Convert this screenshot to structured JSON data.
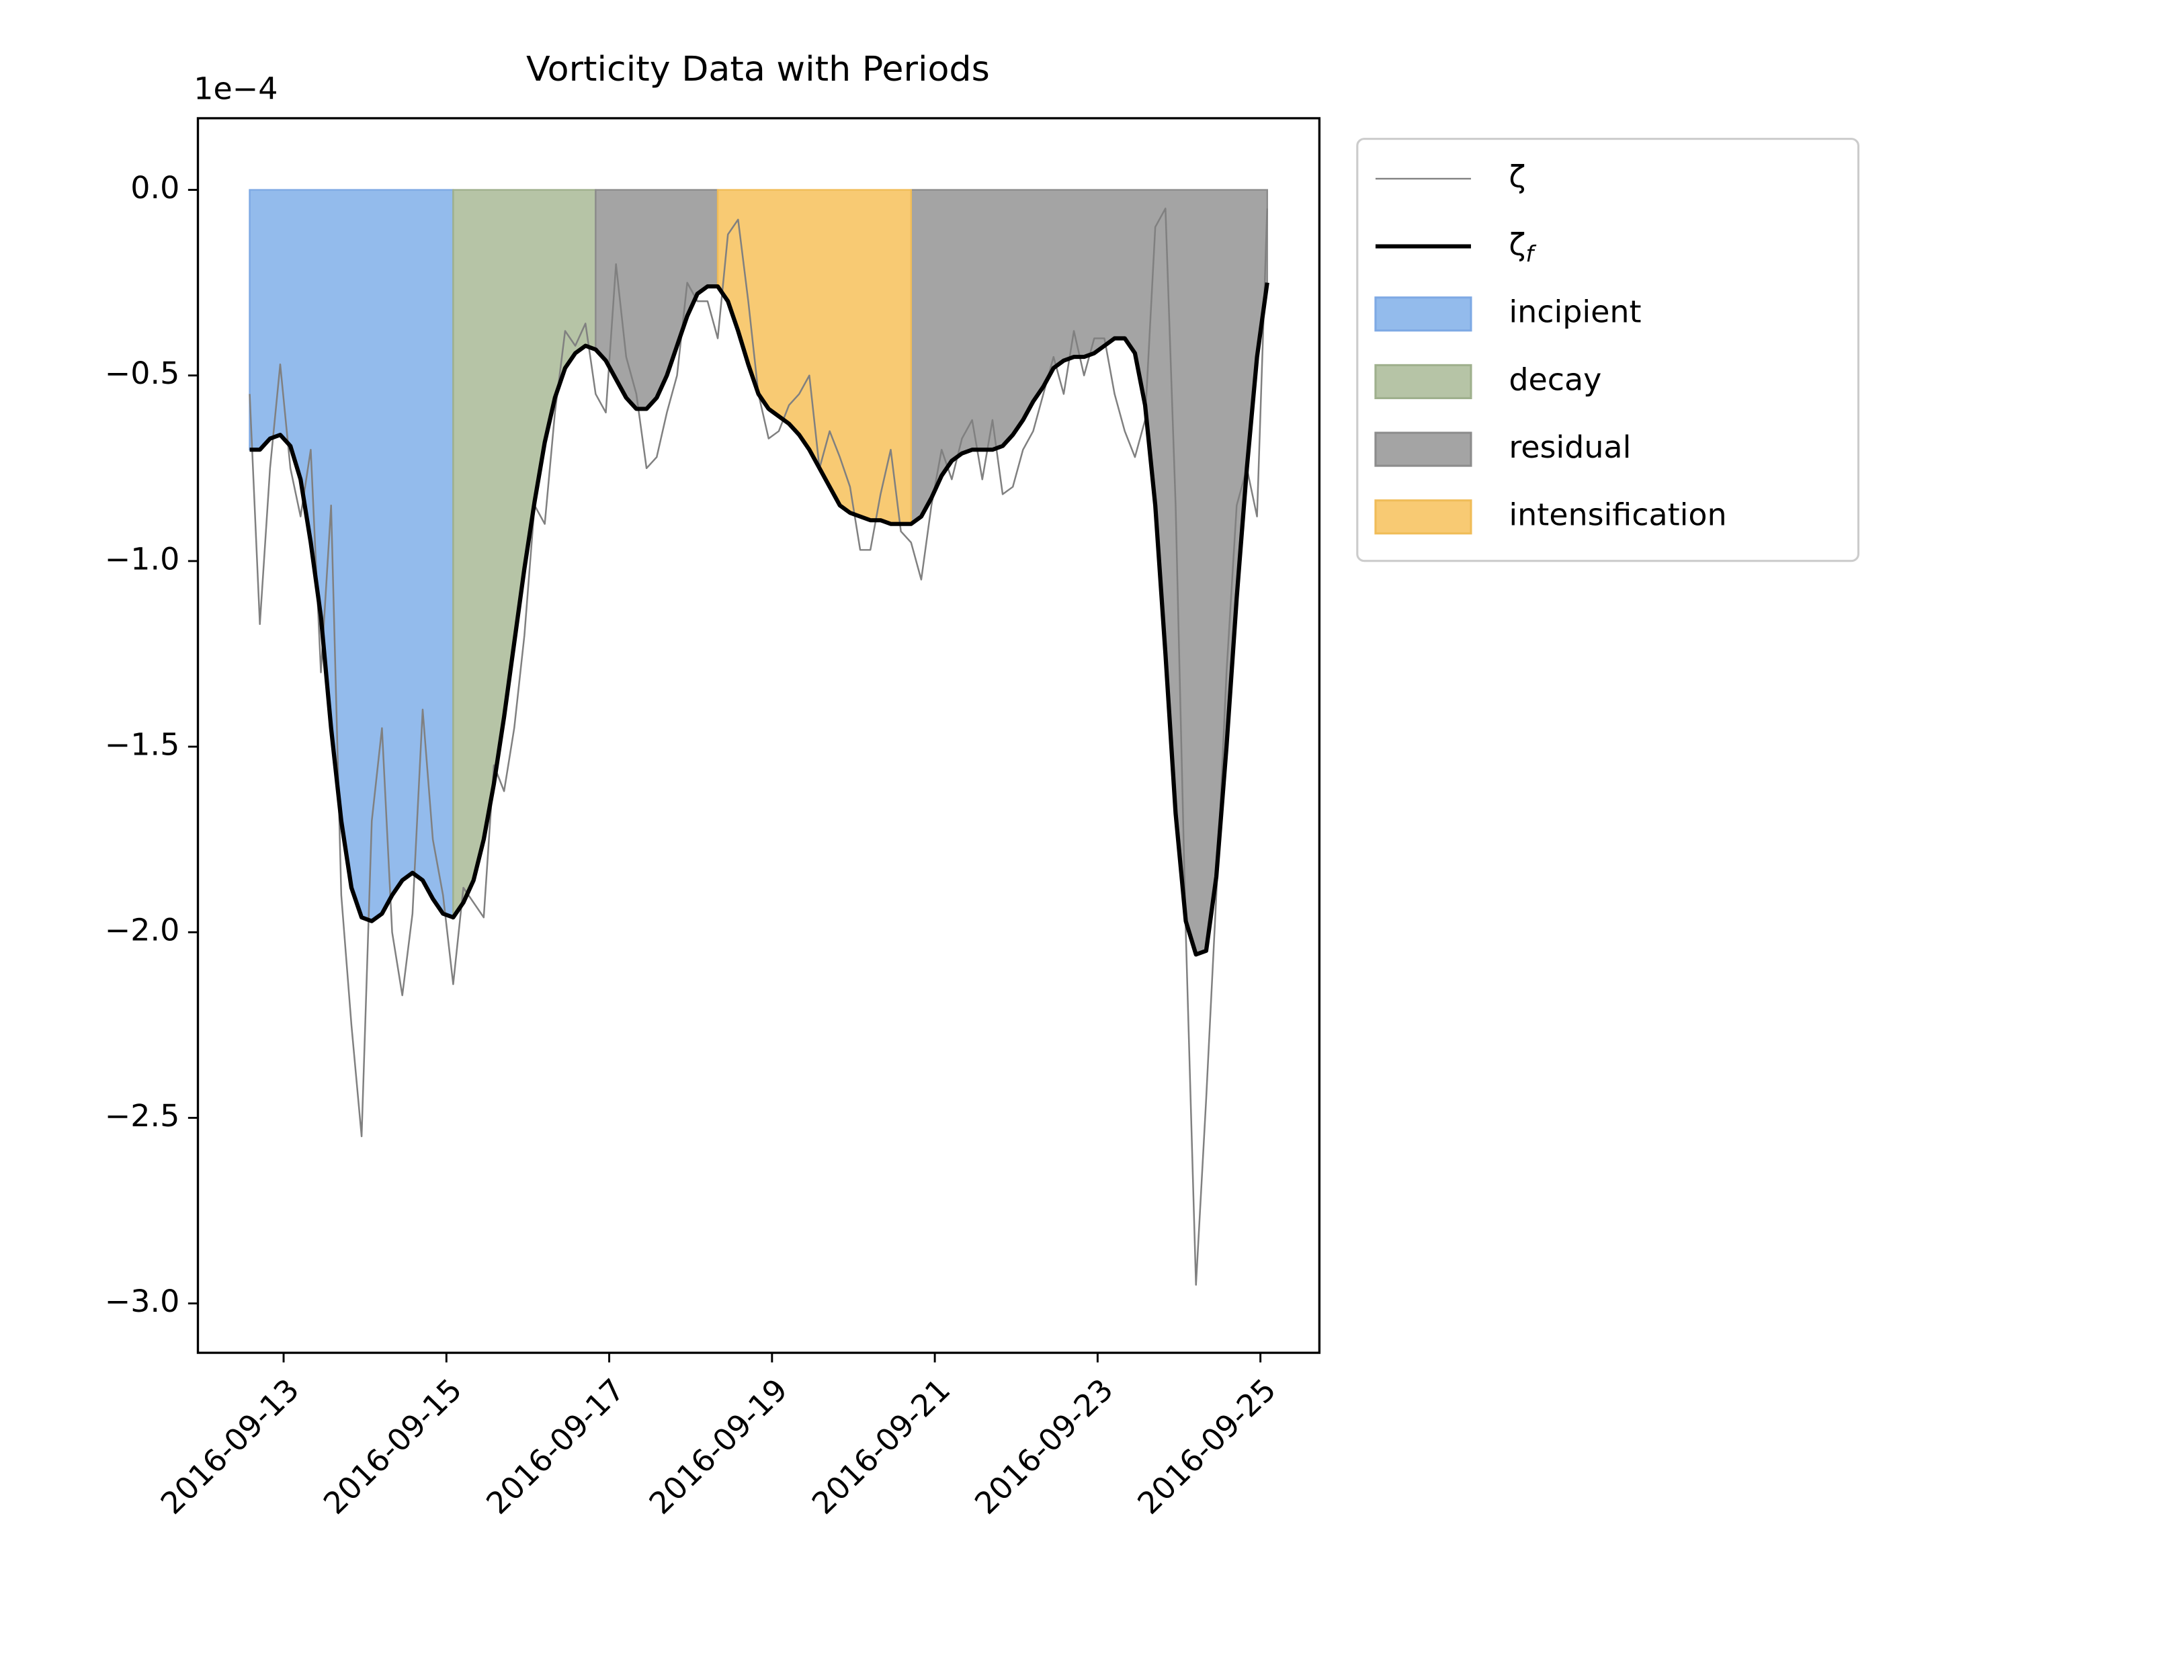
{
  "chart_data": {
    "type": "line",
    "title": "Vorticity Data with Periods",
    "y_offset_label": "1e−4",
    "x": [
      "2016-09-12T14:00",
      "2016-09-12T17:00",
      "2016-09-12T20:00",
      "2016-09-12T23:00",
      "2016-09-13T02:00",
      "2016-09-13T05:00",
      "2016-09-13T08:00",
      "2016-09-13T11:00",
      "2016-09-13T14:00",
      "2016-09-13T17:00",
      "2016-09-13T20:00",
      "2016-09-13T23:00",
      "2016-09-14T02:00",
      "2016-09-14T05:00",
      "2016-09-14T08:00",
      "2016-09-14T11:00",
      "2016-09-14T14:00",
      "2016-09-14T17:00",
      "2016-09-14T20:00",
      "2016-09-14T23:00",
      "2016-09-15T02:00",
      "2016-09-15T05:00",
      "2016-09-15T08:00",
      "2016-09-15T11:00",
      "2016-09-15T14:00",
      "2016-09-15T17:00",
      "2016-09-15T20:00",
      "2016-09-15T23:00",
      "2016-09-16T02:00",
      "2016-09-16T05:00",
      "2016-09-16T08:00",
      "2016-09-16T11:00",
      "2016-09-16T14:00",
      "2016-09-16T17:00",
      "2016-09-16T20:00",
      "2016-09-16T23:00",
      "2016-09-17T02:00",
      "2016-09-17T05:00",
      "2016-09-17T08:00",
      "2016-09-17T11:00",
      "2016-09-17T14:00",
      "2016-09-17T17:00",
      "2016-09-17T20:00",
      "2016-09-17T23:00",
      "2016-09-18T02:00",
      "2016-09-18T05:00",
      "2016-09-18T08:00",
      "2016-09-18T11:00",
      "2016-09-18T14:00",
      "2016-09-18T17:00",
      "2016-09-18T20:00",
      "2016-09-18T23:00",
      "2016-09-19T02:00",
      "2016-09-19T05:00",
      "2016-09-19T08:00",
      "2016-09-19T11:00",
      "2016-09-19T14:00",
      "2016-09-19T17:00",
      "2016-09-19T20:00",
      "2016-09-19T23:00",
      "2016-09-20T02:00",
      "2016-09-20T05:00",
      "2016-09-20T08:00",
      "2016-09-20T11:00",
      "2016-09-20T14:00",
      "2016-09-20T17:00",
      "2016-09-20T20:00",
      "2016-09-20T23:00",
      "2016-09-21T02:00",
      "2016-09-21T05:00",
      "2016-09-21T08:00",
      "2016-09-21T11:00",
      "2016-09-21T14:00",
      "2016-09-21T17:00",
      "2016-09-21T20:00",
      "2016-09-21T23:00",
      "2016-09-22T02:00",
      "2016-09-22T05:00",
      "2016-09-22T08:00",
      "2016-09-22T11:00",
      "2016-09-22T14:00",
      "2016-09-22T17:00",
      "2016-09-22T20:00",
      "2016-09-22T23:00",
      "2016-09-23T02:00",
      "2016-09-23T05:00",
      "2016-09-23T08:00",
      "2016-09-23T11:00",
      "2016-09-23T14:00",
      "2016-09-23T17:00",
      "2016-09-23T20:00",
      "2016-09-23T23:00",
      "2016-09-24T02:00",
      "2016-09-24T05:00",
      "2016-09-24T08:00",
      "2016-09-24T11:00",
      "2016-09-24T14:00",
      "2016-09-24T17:00",
      "2016-09-24T20:00",
      "2016-09-24T23:00",
      "2016-09-25T02:00"
    ],
    "series": [
      {
        "name": "ζ",
        "color": "#808080",
        "width": 1,
        "values": [
          -0.55,
          -1.17,
          -0.75,
          -0.47,
          -0.75,
          -0.88,
          -0.7,
          -1.3,
          -0.85,
          -1.9,
          -2.25,
          -2.55,
          -1.7,
          -1.45,
          -2.0,
          -2.17,
          -1.95,
          -1.4,
          -1.75,
          -1.9,
          -2.14,
          -1.88,
          -1.92,
          -1.96,
          -1.55,
          -1.62,
          -1.45,
          -1.2,
          -0.85,
          -0.9,
          -0.6,
          -0.38,
          -0.42,
          -0.36,
          -0.55,
          -0.6,
          -0.2,
          -0.45,
          -0.55,
          -0.75,
          -0.72,
          -0.6,
          -0.5,
          -0.25,
          -0.3,
          -0.3,
          -0.4,
          -0.12,
          -0.08,
          -0.3,
          -0.55,
          -0.67,
          -0.65,
          -0.58,
          -0.55,
          -0.5,
          -0.75,
          -0.65,
          -0.72,
          -0.8,
          -0.97,
          -0.97,
          -0.82,
          -0.7,
          -0.92,
          -0.95,
          -1.05,
          -0.85,
          -0.7,
          -0.78,
          -0.67,
          -0.62,
          -0.78,
          -0.62,
          -0.82,
          -0.8,
          -0.7,
          -0.65,
          -0.55,
          -0.45,
          -0.55,
          -0.38,
          -0.5,
          -0.4,
          -0.4,
          -0.55,
          -0.65,
          -0.72,
          -0.62,
          -0.1,
          -0.05,
          -0.85,
          -2.0,
          -2.95,
          -2.45,
          -1.9,
          -1.3,
          -0.85,
          -0.75,
          -0.88,
          -0.05
        ]
      },
      {
        "name": "ζf",
        "color": "#000000",
        "width": 2.5,
        "filled": true,
        "values": [
          -0.7,
          -0.7,
          -0.67,
          -0.66,
          -0.69,
          -0.78,
          -0.95,
          -1.15,
          -1.45,
          -1.7,
          -1.88,
          -1.96,
          -1.97,
          -1.95,
          -1.9,
          -1.86,
          -1.84,
          -1.86,
          -1.91,
          -1.95,
          -1.96,
          -1.92,
          -1.86,
          -1.75,
          -1.6,
          -1.42,
          -1.22,
          -1.02,
          -0.84,
          -0.68,
          -0.56,
          -0.48,
          -0.44,
          -0.42,
          -0.43,
          -0.46,
          -0.51,
          -0.56,
          -0.59,
          -0.59,
          -0.56,
          -0.5,
          -0.42,
          -0.34,
          -0.28,
          -0.26,
          -0.26,
          -0.3,
          -0.38,
          -0.47,
          -0.55,
          -0.59,
          -0.61,
          -0.63,
          -0.66,
          -0.7,
          -0.75,
          -0.8,
          -0.85,
          -0.87,
          -0.88,
          -0.89,
          -0.89,
          -0.9,
          -0.9,
          -0.9,
          -0.88,
          -0.83,
          -0.77,
          -0.73,
          -0.71,
          -0.7,
          -0.7,
          -0.7,
          -0.69,
          -0.66,
          -0.62,
          -0.57,
          -0.53,
          -0.48,
          -0.46,
          -0.45,
          -0.45,
          -0.44,
          -0.42,
          -0.4,
          -0.4,
          -0.44,
          -0.58,
          -0.85,
          -1.25,
          -1.68,
          -1.97,
          -2.06,
          -2.05,
          -1.85,
          -1.5,
          -1.1,
          -0.75,
          -0.45,
          -0.25
        ]
      }
    ],
    "periods": [
      {
        "name": "incipient",
        "color": "#93bbec",
        "edge": "#7ea9e4",
        "spans": [
          [
            "2016-09-12T14:00",
            "2016-09-15T02:00"
          ]
        ]
      },
      {
        "name": "decay",
        "color": "#b6c4a6",
        "edge": "#9fb08d",
        "spans": [
          [
            "2016-09-15T02:00",
            "2016-09-16T20:00"
          ]
        ]
      },
      {
        "name": "residual",
        "color": "#a4a4a4",
        "edge": "#8c8c8c",
        "spans": [
          [
            "2016-09-16T20:00",
            "2016-09-18T08:00"
          ],
          [
            "2016-09-20T17:00",
            "2016-09-25T02:00"
          ]
        ]
      },
      {
        "name": "intensification",
        "color": "#f8ca73",
        "edge": "#f0bc58",
        "spans": [
          [
            "2016-09-18T08:00",
            "2016-09-20T17:00"
          ]
        ]
      }
    ],
    "xlim": [
      "2016-09-11T22:44",
      "2016-09-25T17:23"
    ],
    "xticks": [
      "2016-09-13",
      "2016-09-15",
      "2016-09-17",
      "2016-09-19",
      "2016-09-21",
      "2016-09-23",
      "2016-09-25"
    ],
    "ylim": [
      -3.133,
      0.193
    ],
    "yticks": [
      {
        "value": 0,
        "label": "0.0"
      },
      {
        "value": -0.5,
        "label": "−0.5"
      },
      {
        "value": -1,
        "label": "−1.0"
      },
      {
        "value": -1.5,
        "label": "−1.5"
      },
      {
        "value": -2,
        "label": "−2.0"
      },
      {
        "value": -2.5,
        "label": "−2.5"
      },
      {
        "value": -3,
        "label": "−3.0"
      }
    ],
    "grid": false,
    "legend": "outside-upper-right"
  }
}
